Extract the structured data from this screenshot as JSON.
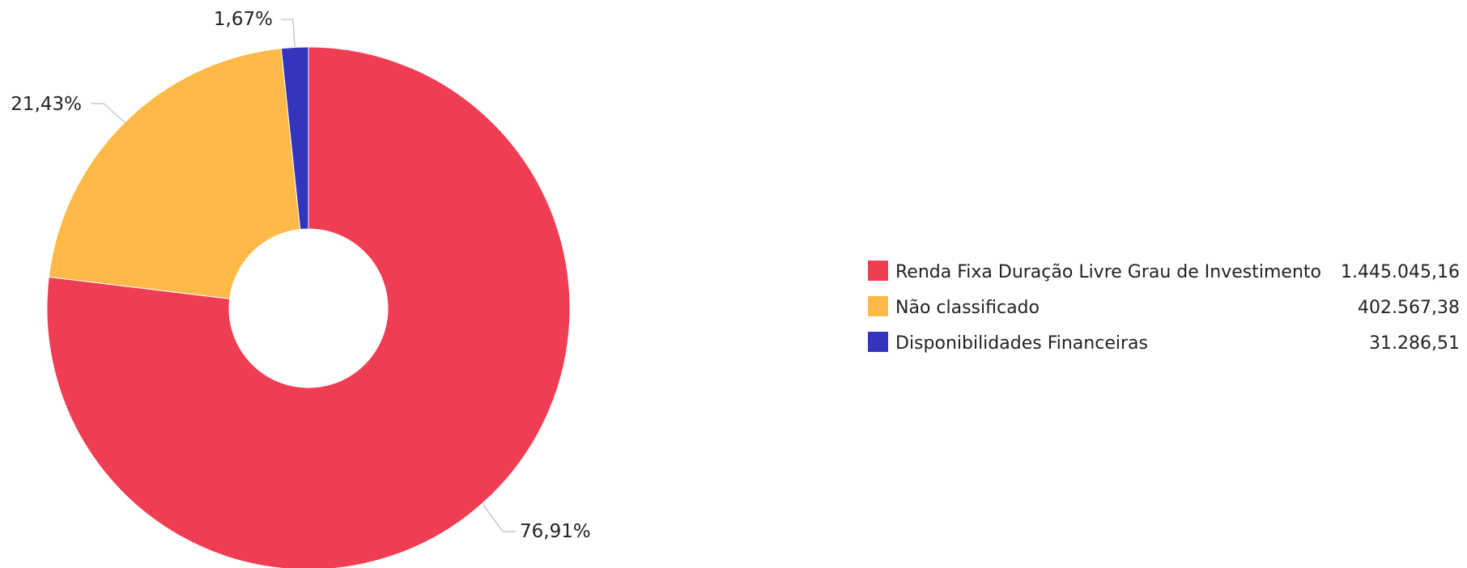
{
  "chart_data": {
    "type": "pie",
    "title": "",
    "categories": [
      "Renda Fixa Duração Livre Grau de Investimento",
      "Não classificado",
      "Disponibilidades Financeiras"
    ],
    "values": [
      1445045.16,
      402567.38,
      31286.51
    ],
    "value_labels": [
      "1.445.045,16",
      "402.567,38",
      "31.286,51"
    ],
    "percent_labels": [
      "76,91%",
      "21,43%",
      "1,67%"
    ],
    "colors": [
      "#ef3d53",
      "#ffb946",
      "#3434bc"
    ],
    "donut": true,
    "legend_placement": "right"
  }
}
